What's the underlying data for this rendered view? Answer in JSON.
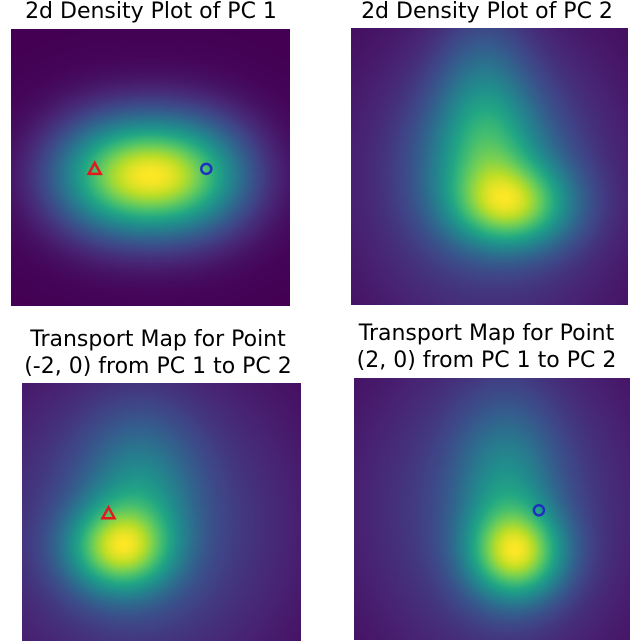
{
  "chart_data": [
    {
      "type": "heatmap",
      "title": "2d Density Plot of PC 1",
      "colormap": "viridis",
      "markers": [
        {
          "shape": "triangle",
          "color": "#e31a1c",
          "x": -2,
          "y": 0
        },
        {
          "shape": "circle",
          "color": "#1f2fbf",
          "x": 2,
          "y": 0
        }
      ]
    },
    {
      "type": "heatmap",
      "title": "2d Density Plot of PC 2",
      "colormap": "viridis",
      "markers": []
    },
    {
      "type": "heatmap",
      "title_lines": [
        "Transport Map for Point",
        "(-2, 0) from PC 1 to PC 2"
      ],
      "colormap": "viridis",
      "markers": [
        {
          "shape": "triangle",
          "color": "#e31a1c",
          "x": -2,
          "y": 0
        }
      ]
    },
    {
      "type": "heatmap",
      "title_lines": [
        "Transport Map for Point",
        "(2, 0) from PC 1 to PC 2"
      ],
      "colormap": "viridis",
      "markers": [
        {
          "shape": "circle",
          "color": "#1f2fbf",
          "x": 2,
          "y": 0
        }
      ]
    }
  ]
}
